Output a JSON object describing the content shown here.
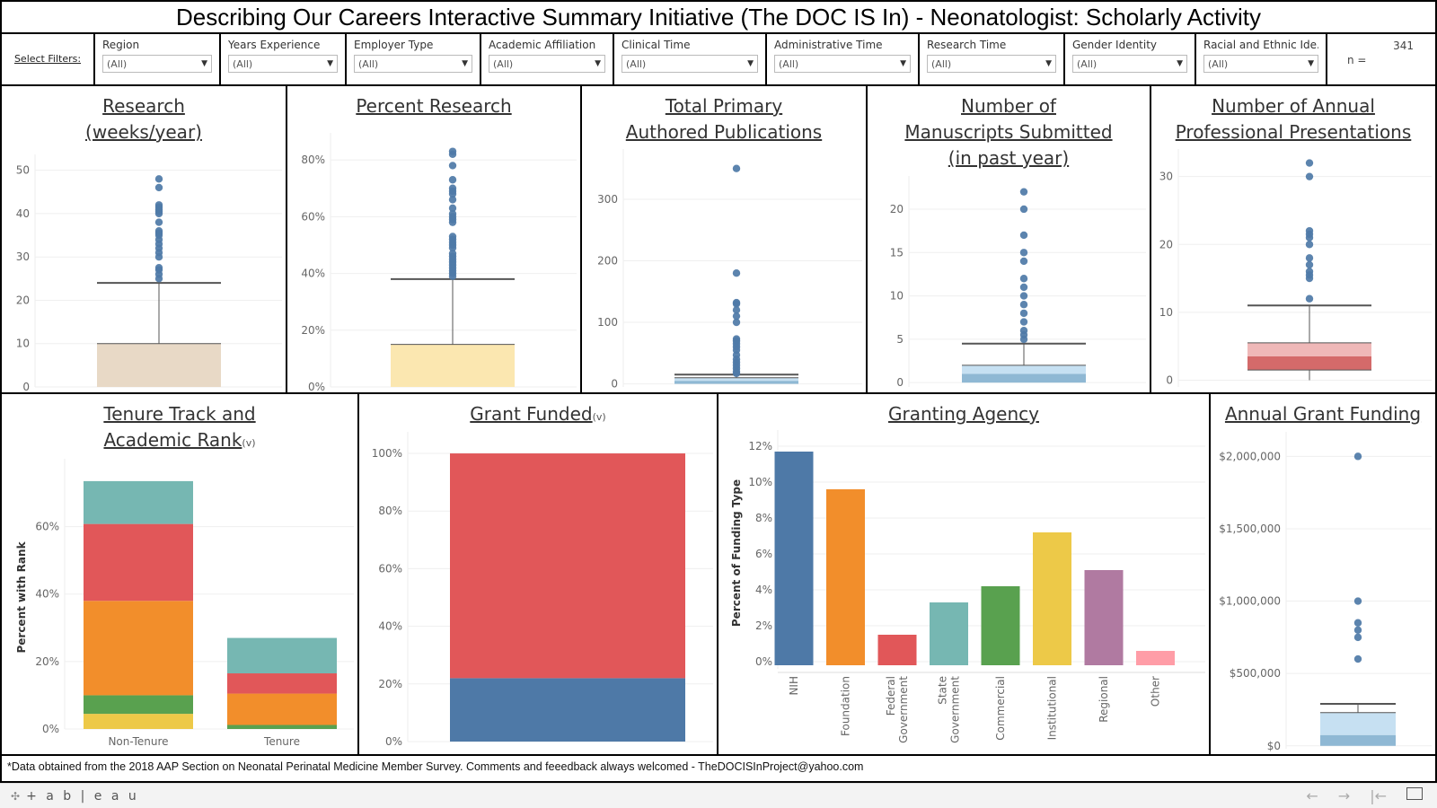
{
  "title": "Describing Our Careers Interactive Summary Initiative (The DOC IS In) - Neonatologist: Scholarly Activity",
  "filters": {
    "label": "Select Filters:",
    "items": [
      {
        "label": "Region",
        "value": "(All)"
      },
      {
        "label": "Years Experience",
        "value": "(All)"
      },
      {
        "label": "Employer Type",
        "value": "(All)"
      },
      {
        "label": "Academic Affiliation",
        "value": "(All)"
      },
      {
        "label": "Clinical Time",
        "value": "(All)"
      },
      {
        "label": "Administrative Time",
        "value": "(All)"
      },
      {
        "label": "Research Time",
        "value": "(All)"
      },
      {
        "label": "Gender Identity",
        "value": "(All)"
      },
      {
        "label": "Racial and Ethnic Ide...",
        "value": "(All)"
      }
    ],
    "n_label": "n =",
    "n_value": "341"
  },
  "panel_titles": {
    "research": [
      "Research",
      "(weeks/year)"
    ],
    "percent_research": [
      "Percent Research"
    ],
    "publications": [
      "Total Primary",
      "Authored Publications"
    ],
    "manuscripts": [
      "Number of",
      "Manuscripts Submitted",
      "(in past year)"
    ],
    "presentations": [
      "Number of Annual",
      "Professional Presentations"
    ],
    "tenure": [
      "Tenure Track and",
      "Academic Rank"
    ],
    "grant_funded": [
      "Grant Funded"
    ],
    "granting_agency": [
      "Granting Agency"
    ],
    "annual_funding": [
      "Annual Grant Funding"
    ],
    "v_marker": "(v)"
  },
  "chart_data": [
    {
      "id": "research",
      "type": "boxplot",
      "title": "Research (weeks/year)",
      "yticks": [
        "0",
        "10",
        "20",
        "30",
        "40",
        "50"
      ],
      "ylim": [
        0,
        52
      ],
      "box": {
        "q1": 0,
        "median": 0,
        "q3": 10,
        "lower_whisker": 0,
        "upper_whisker": 24,
        "colors": [
          "#e8d9c6",
          "#e8d9c6"
        ]
      },
      "outliers": [
        48,
        46,
        42,
        41.5,
        41,
        40.5,
        40,
        38,
        36,
        35.5,
        35,
        34,
        33,
        32,
        31,
        30,
        27.5,
        27,
        26,
        25
      ]
    },
    {
      "id": "percent_research",
      "type": "boxplot",
      "title": "Percent Research",
      "yticks": [
        "0%",
        "20%",
        "40%",
        "60%",
        "80%"
      ],
      "ylim": [
        0,
        0.87
      ],
      "box": {
        "q1": 0,
        "median": 0,
        "q3": 0.15,
        "lower_whisker": 0,
        "upper_whisker": 0.38,
        "colors": [
          "#fbe7b0",
          "#fbe7b0"
        ]
      },
      "outliers": [
        0.83,
        0.82,
        0.78,
        0.73,
        0.7,
        0.69,
        0.68,
        0.66,
        0.63,
        0.61,
        0.6,
        0.59,
        0.58,
        0.53,
        0.52,
        0.51,
        0.5,
        0.49,
        0.47,
        0.46,
        0.45,
        0.44,
        0.43,
        0.42,
        0.41,
        0.4,
        0.39
      ]
    },
    {
      "id": "publications",
      "type": "boxplot",
      "title": "Total Primary Authored Publications",
      "yticks": [
        "0",
        "100",
        "200",
        "300"
      ],
      "ylim": [
        -5,
        370
      ],
      "box": {
        "q1": 0,
        "median": 5,
        "q3": 10,
        "lower_whisker": 0,
        "upper_whisker": 15,
        "colors": [
          "#8fb8d4",
          "#c6e0f2"
        ]
      },
      "outliers": [
        350,
        180,
        132,
        130,
        120,
        110,
        100,
        73,
        70,
        65,
        60,
        55,
        47,
        40,
        35,
        30,
        25,
        20,
        17
      ]
    },
    {
      "id": "manuscripts",
      "type": "boxplot",
      "title": "Number of Manuscripts Submitted (in past year)",
      "yticks": [
        "0",
        "5",
        "10",
        "15",
        "20"
      ],
      "ylim": [
        -0.5,
        23
      ],
      "box": {
        "q1": 0,
        "median": 1,
        "q3": 2,
        "lower_whisker": 0,
        "upper_whisker": 4.5,
        "colors": [
          "#8fb8d4",
          "#c6e0f2"
        ]
      },
      "outliers": [
        22,
        20,
        17,
        15,
        14,
        12,
        11,
        10,
        9,
        8,
        7,
        6,
        5.5,
        5
      ]
    },
    {
      "id": "presentations",
      "type": "boxplot",
      "title": "Number of Annual Professional Presentations",
      "yticks": [
        "0",
        "10",
        "20",
        "30"
      ],
      "ylim": [
        -1,
        33
      ],
      "box": {
        "q1": 1.5,
        "median": 3.5,
        "q3": 5.5,
        "lower_whisker": 0,
        "upper_whisker": 11,
        "colors": [
          "#d46a6a",
          "#efb8b8"
        ]
      },
      "outliers": [
        32,
        30,
        22,
        21.5,
        21,
        20,
        18,
        17,
        16,
        15.5,
        15,
        12
      ]
    },
    {
      "id": "tenure",
      "type": "stacked_bar",
      "title": "Tenure Track and Academic Rank",
      "ylabel": "Percent with Rank",
      "categories": [
        "Non-Tenure",
        "Tenure"
      ],
      "yticks": [
        "0%",
        "20%",
        "40%",
        "60%"
      ],
      "ylim": [
        0,
        0.78
      ],
      "series": [
        {
          "color": "#edc948",
          "values": [
            0.045,
            0.0
          ]
        },
        {
          "color": "#59a14f",
          "values": [
            0.055,
            0.012
          ]
        },
        {
          "color": "#f28e2b",
          "values": [
            0.28,
            0.093
          ]
        },
        {
          "color": "#e15759",
          "values": [
            0.228,
            0.06
          ]
        },
        {
          "color": "#76b7b2",
          "values": [
            0.127,
            0.105
          ]
        }
      ]
    },
    {
      "id": "grant_funded",
      "type": "stacked_bar",
      "title": "Grant Funded",
      "categories": [
        ""
      ],
      "yticks": [
        "0%",
        "20%",
        "40%",
        "60%",
        "80%",
        "100%"
      ],
      "ylim": [
        0,
        1.05
      ],
      "series": [
        {
          "color": "#4e79a7",
          "values": [
            0.22
          ]
        },
        {
          "color": "#e15759",
          "values": [
            0.78
          ]
        }
      ]
    },
    {
      "id": "granting_agency",
      "type": "bar",
      "title": "Granting Agency",
      "ylabel": "Percent of Funding Type",
      "categories": [
        "NIH",
        "Foundation",
        "Federal Government",
        "State Government",
        "Commercial",
        "Institutional",
        "Regional",
        "Other"
      ],
      "values": [
        0.117,
        0.096,
        0.015,
        0.033,
        0.042,
        0.072,
        0.051,
        0.006
      ],
      "colors": [
        "#4e79a7",
        "#f28e2b",
        "#e15759",
        "#76b7b2",
        "#59a14f",
        "#edc948",
        "#b07aa1",
        "#ff9da7"
      ],
      "yticks": [
        "0%",
        "2%",
        "4%",
        "6%",
        "8%",
        "10%",
        "12%"
      ],
      "ylim": [
        -0.004,
        0.125
      ]
    },
    {
      "id": "annual_funding",
      "type": "boxplot",
      "title": "Annual Grant Funding",
      "yticks": [
        "$0",
        "$500,000",
        "$1,000,000",
        "$1,500,000",
        "$2,000,000"
      ],
      "ylim": [
        -20000,
        2120000
      ],
      "box": {
        "q1": 0,
        "median": 75000,
        "q3": 230000,
        "lower_whisker": 0,
        "upper_whisker": 290000,
        "colors": [
          "#8fb8d4",
          "#c6e0f2"
        ]
      },
      "outliers": [
        2000000,
        1000000,
        850000,
        800000,
        750000,
        600000
      ]
    }
  ],
  "footer_note": "*Data obtained from the 2018 AAP Section on Neonatal Perinatal Medicine Member Survey.  Comments and feeedback always welcomed - TheDOCISInProject@yahoo.com",
  "toolbar": {
    "logo_text": "+ a b | e a u",
    "undo_icon": "←",
    "redo_icon": "→",
    "revert_icon": "|←",
    "fullscreen_icon": "fullscreen"
  }
}
